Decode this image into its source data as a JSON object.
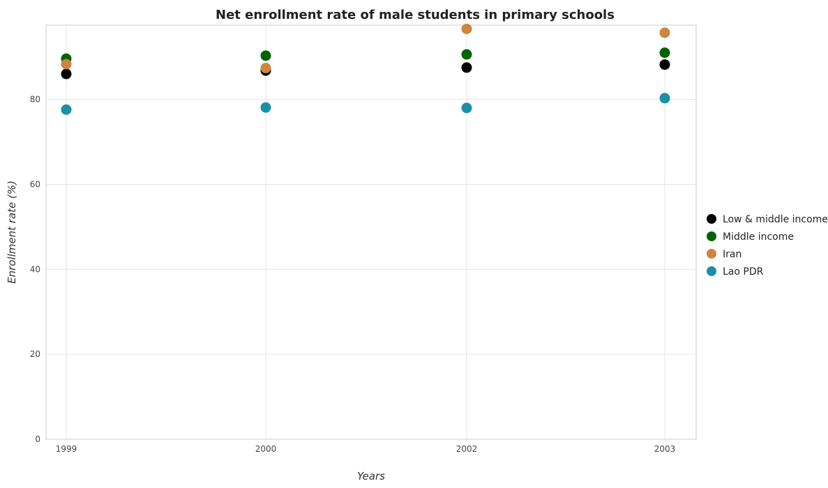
{
  "chart_data": {
    "type": "scatter",
    "title": "Net enrollment rate of male students in primary schools",
    "xlabel": "Years",
    "ylabel": "Enrollment rate (%)",
    "categories": [
      "1999",
      "2000",
      "2002",
      "2003"
    ],
    "ylim": [
      0,
      97.5
    ],
    "yticks": [
      0,
      20,
      40,
      60,
      80
    ],
    "grid": true,
    "legend_position": "right",
    "series": [
      {
        "name": "Low & middle income",
        "color": "#000000",
        "values": [
          86.0,
          86.8,
          87.5,
          88.2
        ]
      },
      {
        "name": "Middle income",
        "color": "#006400",
        "values": [
          89.6,
          90.3,
          90.6,
          91.0
        ]
      },
      {
        "name": "Iran",
        "color": "#cd853f",
        "values": [
          88.3,
          87.4,
          96.6,
          95.7
        ]
      },
      {
        "name": "Lao PDR",
        "color": "#1a8fa8",
        "values": [
          77.6,
          78.1,
          78.0,
          80.3
        ]
      }
    ]
  }
}
